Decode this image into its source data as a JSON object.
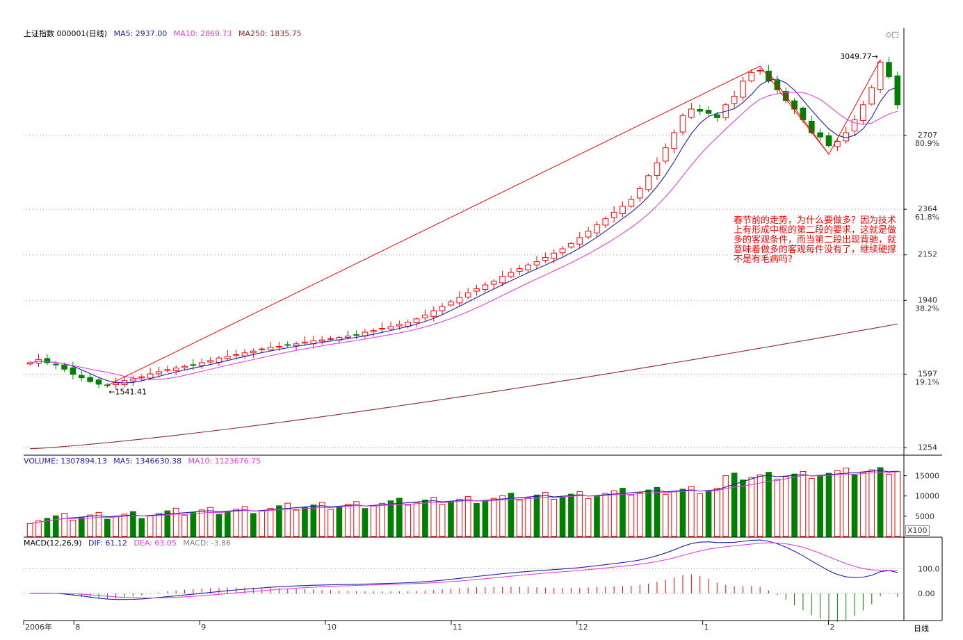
{
  "header": {
    "title": "上证指数 000001(日线)",
    "ma5": "MA5: 2937.00",
    "ma10": "MA10: 2869.73",
    "ma250": "MA250: 1835.75"
  },
  "volume_header": {
    "volume": "VOLUME: 1307894.13",
    "ma5": "MA5: 1346630.38",
    "ma10": "MA10: 1123676.75"
  },
  "macd_header": {
    "label": "MACD(12,26,9)",
    "dif": "DIF: 61.12",
    "dea": "DEA: 63.05",
    "macd": "MACD: -3.86"
  },
  "window_controls": "◇□",
  "annotation": "春节前的走势，为什么要做多？因为技术上有形成中枢的第二段的要求，这就是做多的客观条件，而当第二段出现背驰，就意味着做多的客观每件没有了，继续硬撑不是有毛病吗？",
  "period_label": "日线",
  "volume_unit": "X100",
  "chart_data": [
    {
      "type": "candlestick",
      "name": "上证指数 000001(日线)",
      "y_ticks": [
        {
          "value": 2707,
          "label": "2707",
          "pct": "80.9%"
        },
        {
          "value": 2364,
          "label": "2364",
          "pct": "61.8%"
        },
        {
          "value": 2152,
          "label": "2152"
        },
        {
          "value": 1940,
          "label": "1940",
          "pct": "38.2%"
        },
        {
          "value": 1597,
          "label": "1597",
          "pct": "19.1%"
        },
        {
          "value": 1254,
          "label": "1254"
        }
      ],
      "ylim": [
        1220,
        3150
      ],
      "annotations": [
        {
          "label": "1541.41",
          "value": 1541.41
        },
        {
          "label": "3049.77",
          "value": 3049.77
        }
      ],
      "ma250_range": [
        1250,
        1830
      ],
      "close_path": [
        1650,
        1665,
        1650,
        1640,
        1620,
        1596,
        1580,
        1562,
        1550,
        1545,
        1556,
        1567,
        1575,
        1585,
        1598,
        1608,
        1618,
        1625,
        1633,
        1640,
        1650,
        1660,
        1672,
        1680,
        1688,
        1696,
        1704,
        1714,
        1722,
        1726,
        1732,
        1738,
        1746,
        1752,
        1756,
        1762,
        1768,
        1774,
        1780,
        1792,
        1800,
        1810,
        1818,
        1828,
        1838,
        1854,
        1872,
        1892,
        1912,
        1933,
        1954,
        1975,
        1994,
        2012,
        2030,
        2052,
        2070,
        2088,
        2105,
        2120,
        2140,
        2160,
        2180,
        2205,
        2232,
        2262,
        2292,
        2320,
        2350,
        2378,
        2410,
        2460,
        2520,
        2580,
        2650,
        2720,
        2800,
        2830,
        2820,
        2810,
        2790,
        2850,
        2890,
        2960,
        3000,
        3010,
        2960,
        2920,
        2870,
        2830,
        2780,
        2720,
        2700,
        2660,
        2680,
        2720,
        2780,
        2850,
        2930,
        3049,
        2980,
        2850
      ]
    },
    {
      "type": "bar",
      "name": "VOLUME",
      "y_ticks": [
        {
          "value": 15000,
          "label": "15000"
        },
        {
          "value": 10000,
          "label": "10000"
        },
        {
          "value": 5000,
          "label": "5000"
        }
      ],
      "ylim": [
        0,
        17500
      ]
    },
    {
      "type": "line",
      "name": "MACD(12,26,9)",
      "series": [
        {
          "name": "DIF"
        },
        {
          "name": "DEA"
        },
        {
          "name": "MACD"
        }
      ],
      "y_ticks": [
        {
          "value": 100,
          "label": "100.0"
        },
        {
          "value": 0,
          "label": "0.00"
        }
      ],
      "ylim": [
        -110,
        180
      ]
    }
  ],
  "x_axis": [
    "2006年",
    "8",
    "9",
    "10",
    "11",
    "12",
    "1",
    "2"
  ],
  "colors": {
    "up": "#ff0000",
    "down": "#008000",
    "ma5": "#1c1ca8",
    "ma10": "#e040e0",
    "ma250": "#8a2828",
    "grid": "#9a9a9a"
  }
}
